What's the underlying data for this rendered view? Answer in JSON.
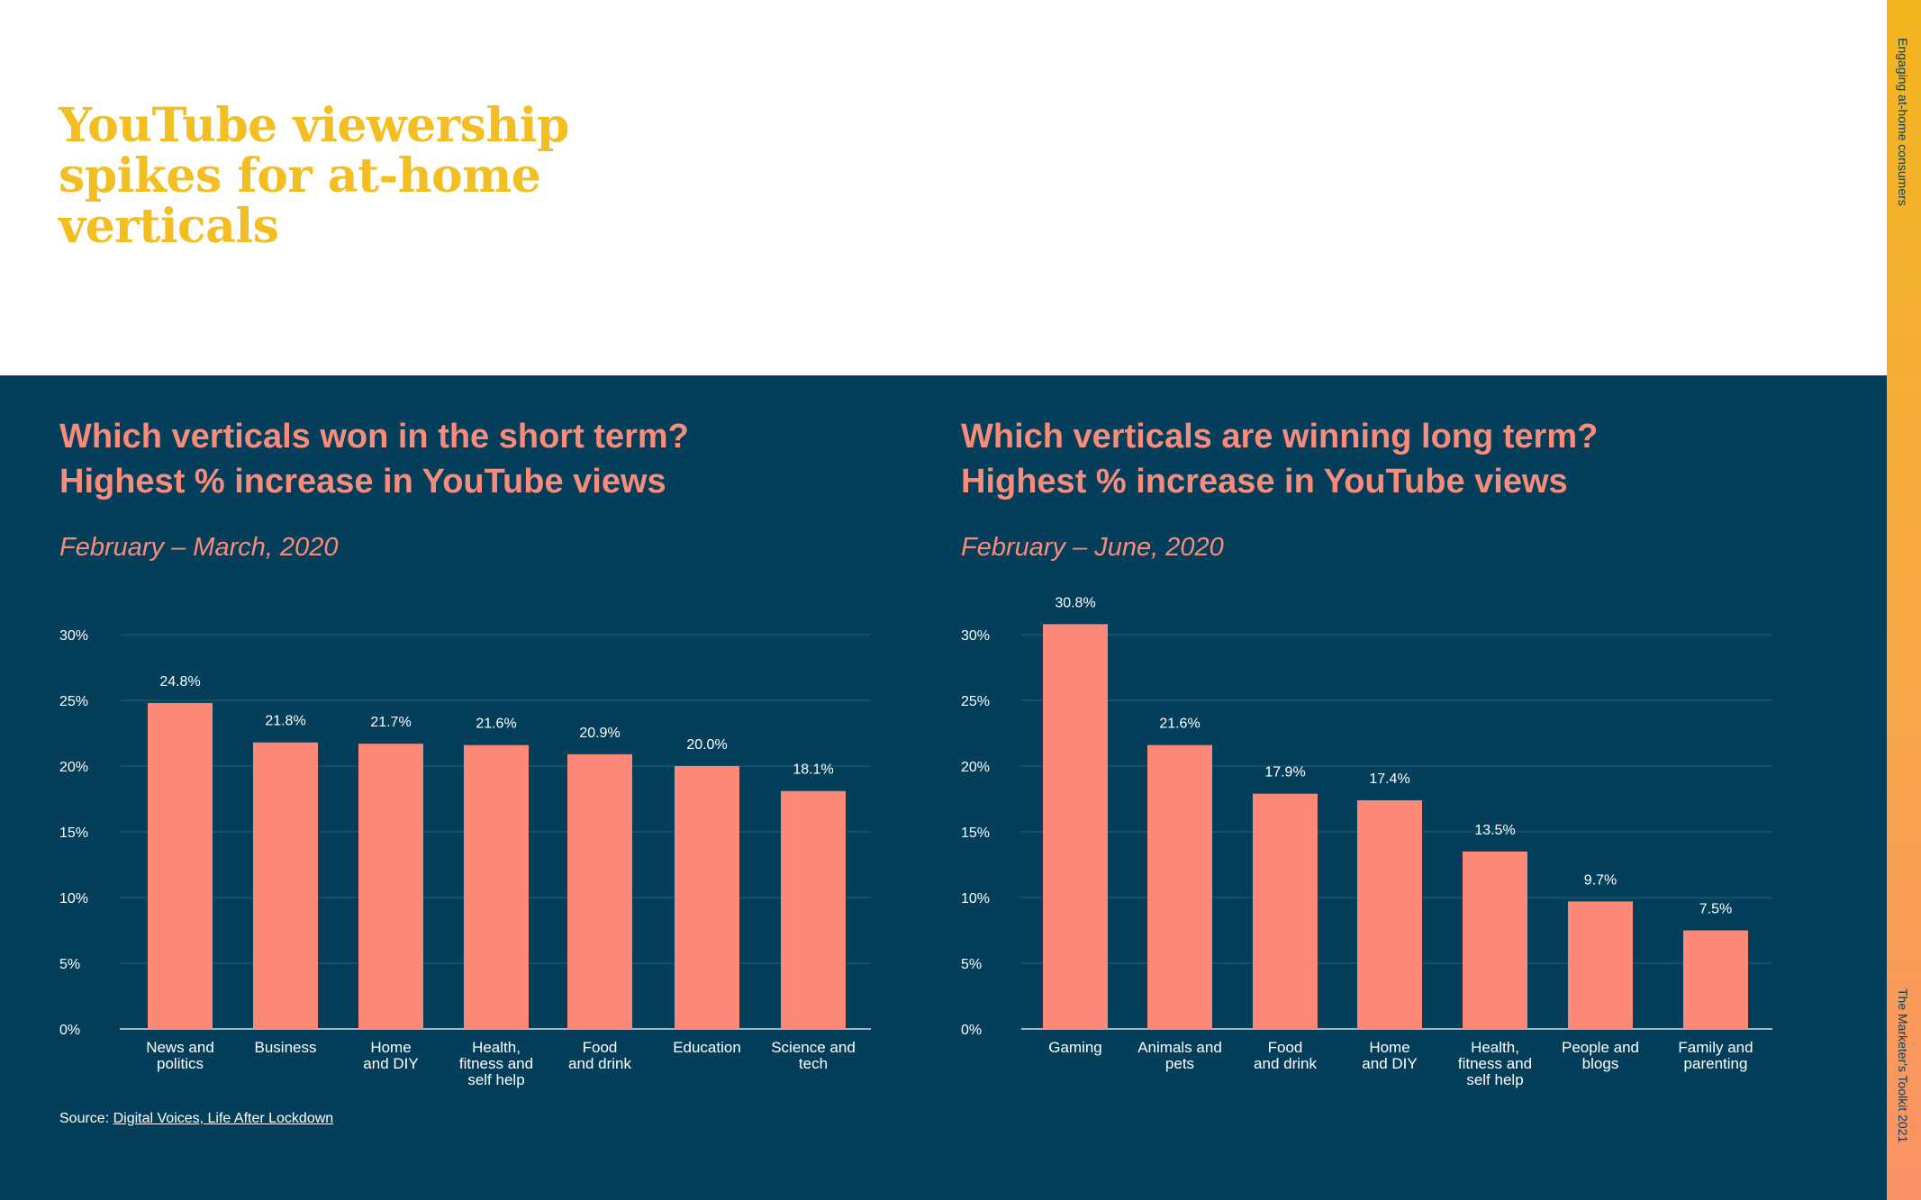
{
  "page": {
    "title": "YouTube viewership spikes for at-home verticals",
    "side_top": "Engaging at-home consumers",
    "side_bottom": "The Marketer's Toolkit 2021"
  },
  "colors": {
    "title": "#f2be22",
    "panel_bg": "#033f5a",
    "heading": "#f98b7b",
    "bar": "#fc8878",
    "text": "#ffffff"
  },
  "source": {
    "prefix": "Source:",
    "link_text": "Digital Voices, Life After Lockdown"
  },
  "chart_data": [
    {
      "type": "bar",
      "title_line1": "Which verticals won in the short term?",
      "title_line2": "Highest % increase in YouTube views",
      "subtitle": "February – March, 2020",
      "categories": [
        [
          "News and",
          "politics"
        ],
        [
          "Business"
        ],
        [
          "Home",
          "and DIY"
        ],
        [
          "Health,",
          "fitness and",
          "self help"
        ],
        [
          "Food",
          "and drink"
        ],
        [
          "Education"
        ],
        [
          "Science and",
          "tech"
        ]
      ],
      "values": [
        24.8,
        21.8,
        21.7,
        21.6,
        20.9,
        20.0,
        18.1
      ],
      "value_labels": [
        "24.8%",
        "21.8%",
        "21.7%",
        "21.6%",
        "20.9%",
        "20.0%",
        "18.1%"
      ],
      "ylim": [
        0,
        30
      ],
      "yticks": [
        0,
        5,
        10,
        15,
        20,
        25,
        30
      ],
      "ytick_labels": [
        "0%",
        "5%",
        "10%",
        "15%",
        "20%",
        "25%",
        "30%"
      ],
      "grid": true
    },
    {
      "type": "bar",
      "title_line1": "Which verticals are winning long term?",
      "title_line2": "Highest % increase in YouTube views",
      "subtitle": "February – June, 2020",
      "categories": [
        [
          "Gaming"
        ],
        [
          "Animals and",
          "pets"
        ],
        [
          "Food",
          "and drink"
        ],
        [
          "Home",
          "and DIY"
        ],
        [
          "Health,",
          "fitness and",
          "self help"
        ],
        [
          "People and",
          "blogs"
        ],
        [
          "Family and",
          "parenting"
        ]
      ],
      "values": [
        30.8,
        21.6,
        17.9,
        17.4,
        13.5,
        9.7,
        7.5
      ],
      "value_labels": [
        "30.8%",
        "21.6%",
        "17.9%",
        "17.4%",
        "13.5%",
        "9.7%",
        "7.5%"
      ],
      "ylim": [
        0,
        30
      ],
      "yticks": [
        0,
        5,
        10,
        15,
        20,
        25,
        30
      ],
      "ytick_labels": [
        "0%",
        "5%",
        "10%",
        "15%",
        "20%",
        "25%",
        "30%"
      ],
      "grid": true
    }
  ]
}
